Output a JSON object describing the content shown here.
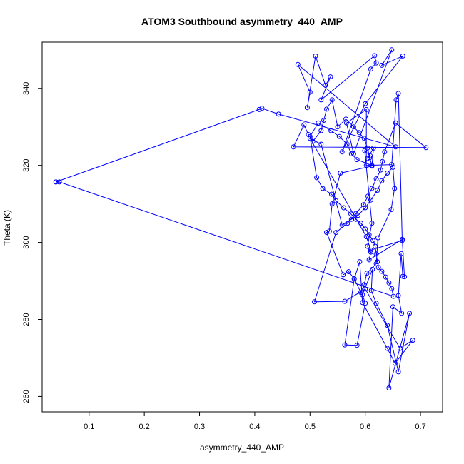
{
  "chart_data": {
    "type": "scatter",
    "title": "ATOM3 Southbound asymmetry_440_AMP",
    "xlabel": "asymmetry_440_AMP",
    "ylabel": "Theta (K)",
    "xlim": [
      0.015,
      0.74
    ],
    "ylim": [
      256,
      352
    ],
    "x_ticks": [
      "0.1",
      "0.2",
      "0.3",
      "0.4",
      "0.5",
      "0.6",
      "0.7"
    ],
    "y_ticks": [
      "260",
      "280",
      "300",
      "320",
      "340"
    ],
    "grid": false,
    "legend": "none",
    "marker": "open-circle",
    "connected": true,
    "color": "#0000ff",
    "series": [
      {
        "x": [
          0.04,
          0.408,
          0.413,
          0.443,
          0.655,
          0.478,
          0.5,
          0.495,
          0.51,
          0.528,
          0.537,
          0.52,
          0.617,
          0.62,
          0.61,
          0.558,
          0.6,
          0.668,
          0.63,
          0.648,
          0.579,
          0.566,
          0.602,
          0.602,
          0.648,
          0.656,
          0.66,
          0.667,
          0.61,
          0.602,
          0.5,
          0.52,
          0.558,
          0.575,
          0.587,
          0.6,
          0.61,
          0.622,
          0.63,
          0.64,
          0.65,
          0.653,
          0.647,
          0.623,
          0.62,
          0.603,
          0.598,
          0.592,
          0.58,
          0.57,
          0.56,
          0.53,
          0.535,
          0.54,
          0.555,
          0.612,
          0.615,
          0.604,
          0.609,
          0.599,
          0.612,
          0.604,
          0.61,
          0.607,
          0.667,
          0.671,
          0.668,
          0.665,
          0.66,
          0.666,
          0.65,
          0.643,
          0.68,
          0.66,
          0.64,
          0.62,
          0.611,
          0.613,
          0.595,
          0.6,
          0.585,
          0.563,
          0.58,
          0.59,
          0.595,
          0.64,
          0.654,
          0.686,
          0.663,
          0.6,
          0.563,
          0.508,
          0.547,
          0.568,
          0.583,
          0.597,
          0.605,
          0.612,
          0.62,
          0.628,
          0.631,
          0.635,
          0.655,
          0.71,
          0.47,
          0.489,
          0.497,
          0.505,
          0.52,
          0.525,
          0.53,
          0.54,
          0.55,
          0.565,
          0.579,
          0.589,
          0.598,
          0.604,
          0.608,
          0.612,
          0.585,
          0.575,
          0.567,
          0.553,
          0.538,
          0.515,
          0.5,
          0.512,
          0.523,
          0.539,
          0.547,
          0.561,
          0.574,
          0.583,
          0.592,
          0.6,
          0.607,
          0.614,
          0.618,
          0.62,
          0.622,
          0.624,
          0.63,
          0.637,
          0.643,
          0.648,
          0.651,
          0.046,
          0.04
        ],
        "y": [
          315.7,
          334.5,
          334.8,
          333.3,
          324.8,
          346.2,
          339.0,
          335.0,
          348.4,
          340.8,
          343.0,
          337.0,
          348.5,
          346.6,
          345.0,
          323.5,
          336.0,
          348.4,
          346.0,
          350.0,
          323.0,
          331.0,
          334.5,
          320.0,
          320.2,
          337.0,
          338.7,
          300.5,
          298.0,
          301.5,
          327.0,
          325.5,
          304.5,
          306.0,
          307.0,
          309.0,
          311.0,
          313.5,
          316.0,
          318.0,
          319.5,
          314.0,
          308.5,
          301.2,
          294.5,
          292.0,
          289.0,
          287.0,
          290.6,
          292.4,
          291.6,
          302.6,
          302.9,
          310.0,
          318.0,
          319.8,
          324.5,
          321.8,
          322.5,
          323.8,
          305.0,
          299.0,
          297.5,
          295.5,
          300.8,
          291.1,
          291.2,
          297.1,
          286.2,
          281.6,
          283.3,
          262.2,
          281.6,
          266.4,
          278.5,
          284.2,
          287.5,
          293.0,
          286.4,
          284.2,
          273.3,
          273.4,
          290.5,
          295.0,
          284.4,
          272.5,
          268.6,
          274.6,
          272.5,
          287.9,
          284.7,
          284.6,
          302.6,
          305.0,
          307.5,
          309.8,
          312.0,
          314.0,
          316.5,
          318.8,
          321.0,
          323.5,
          331.0,
          324.6,
          324.8,
          330.5,
          328.0,
          326.2,
          329.0,
          331.7,
          334.6,
          337.0,
          330.0,
          332.0,
          330.0,
          328.5,
          327.0,
          324.5,
          322.0,
          320.0,
          321.5,
          323.0,
          325.5,
          327.5,
          329.0,
          331.0,
          327.5,
          316.8,
          314.0,
          312.5,
          310.8,
          309.0,
          307.4,
          306.0,
          305.0,
          303.5,
          302.0,
          300.5,
          299.0,
          297.0,
          295.0,
          293.5,
          292.5,
          291.0,
          289.5,
          288.0,
          286.0,
          315.7,
          315.7
        ]
      }
    ]
  }
}
